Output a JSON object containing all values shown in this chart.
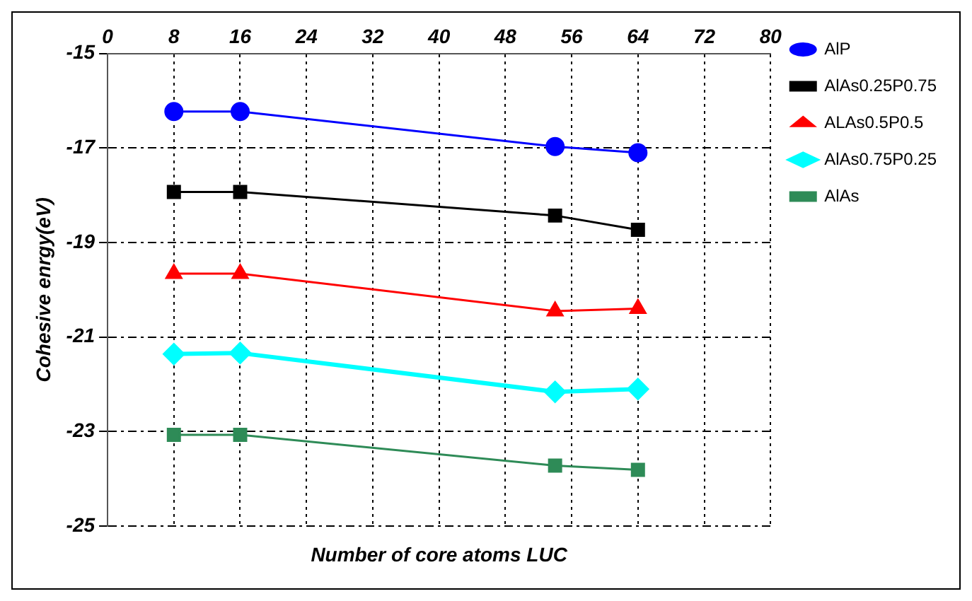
{
  "chart_data": {
    "type": "line",
    "xlabel": "Number of core atoms LUC",
    "ylabel": "Cohesive enrgy(eV)",
    "x": [
      8,
      16,
      54,
      64
    ],
    "xlim": [
      0,
      80
    ],
    "xticks": [
      0,
      8,
      16,
      24,
      32,
      40,
      48,
      56,
      64,
      72,
      80
    ],
    "ylim": [
      -25,
      -15
    ],
    "yticks": [
      -15,
      -17,
      -19,
      -21,
      -23,
      -25
    ],
    "grid": true,
    "legend": "top right",
    "line_style": "solid",
    "series": [
      {
        "name": "AlP",
        "color": "#0000ff",
        "marker": "circle",
        "values": [
          -16.23,
          -16.23,
          -16.97,
          -17.1
        ]
      },
      {
        "name": "AlAs0.25P0.75",
        "color": "#000000",
        "marker": "square",
        "values": [
          -17.93,
          -17.93,
          -18.43,
          -18.73
        ]
      },
      {
        "name": "ALAs0.5P0.5",
        "color": "#ff0000",
        "marker": "triangle",
        "values": [
          -19.66,
          -19.66,
          -20.45,
          -20.4
        ]
      },
      {
        "name": "AlAs0.75P0.25",
        "color": "#00ffff",
        "marker": "diamond",
        "values": [
          -21.36,
          -21.34,
          -22.16,
          -22.1
        ]
      },
      {
        "name": "AlAs",
        "color": "#2e8b57",
        "marker": "square",
        "values": [
          -23.07,
          -23.07,
          -23.72,
          -23.81
        ]
      }
    ]
  }
}
